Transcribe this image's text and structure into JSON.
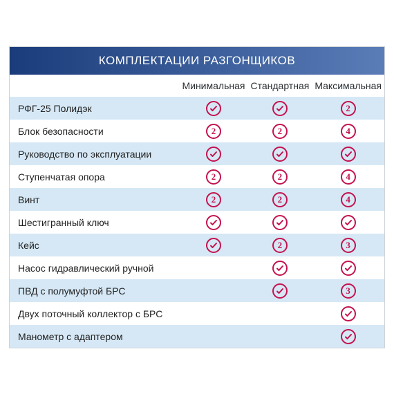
{
  "title": "КОМПЛЕКТАЦИИ РАЗГОНЩИКОВ",
  "columns": [
    "Минимальная",
    "Стандартная",
    "Максимальная"
  ],
  "icon_color": "#c4124e",
  "colors": {
    "header_gradient_from": "#1a3c7a",
    "header_gradient_to": "#5a7db8",
    "row_alt_bg": "#d6e8f5",
    "row_bg": "#ffffff",
    "border": "#cfd3d6",
    "text": "#222222",
    "title_text": "#ffffff"
  },
  "rows": [
    {
      "label": "РФГ-25 Полидэк",
      "cells": [
        "check",
        "check",
        "2"
      ]
    },
    {
      "label": "Блок безопасности",
      "cells": [
        "2",
        "2",
        "4"
      ]
    },
    {
      "label": "Руководство по эксплуатации",
      "cells": [
        "check",
        "check",
        "check"
      ]
    },
    {
      "label": "Ступенчатая опора",
      "cells": [
        "2",
        "2",
        "4"
      ]
    },
    {
      "label": "Винт",
      "cells": [
        "2",
        "2",
        "4"
      ]
    },
    {
      "label": "Шестигранный ключ",
      "cells": [
        "check",
        "check",
        "check"
      ]
    },
    {
      "label": "Кейс",
      "cells": [
        "check",
        "2",
        "3"
      ]
    },
    {
      "label": "Насос гидравлический ручной",
      "cells": [
        "",
        "check",
        "check"
      ]
    },
    {
      "label": "ПВД с полумуфтой БРС",
      "cells": [
        "",
        "check",
        "3"
      ]
    },
    {
      "label": "Двух поточный коллектор с БРС",
      "cells": [
        "",
        "",
        "check"
      ]
    },
    {
      "label": "Манометр с адаптером",
      "cells": [
        "",
        "",
        "check"
      ]
    }
  ]
}
